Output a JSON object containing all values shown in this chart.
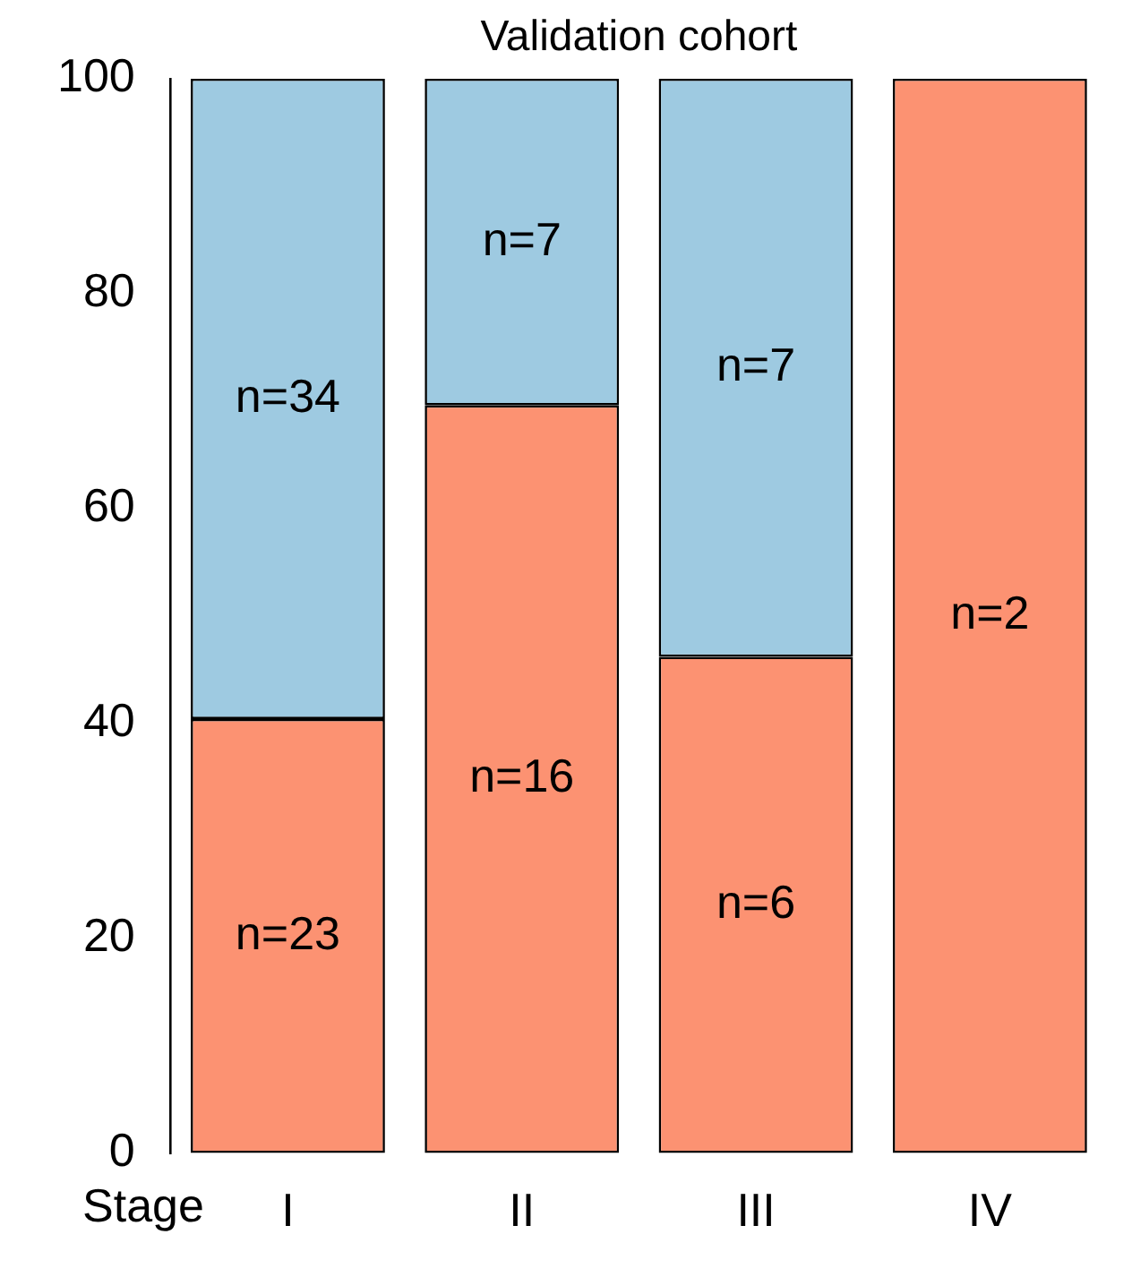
{
  "chart_data": {
    "type": "bar",
    "title": "Validation cohort",
    "xlabel": "Stage",
    "categories": [
      "I",
      "II",
      "III",
      "IV"
    ],
    "stacked": true,
    "series": [
      {
        "color": "#fc9272",
        "values": [
          40.4,
          69.6,
          46.2,
          100
        ]
      },
      {
        "color": "#9ecae1",
        "values": [
          59.6,
          30.4,
          53.8,
          0
        ]
      }
    ],
    "annotations": [
      "n=23",
      "n=16",
      "n=6",
      "n=2",
      "n=34",
      "n=7",
      "n=7"
    ],
    "ylim": [
      0,
      100
    ],
    "yticks": [
      0,
      20,
      40,
      60,
      80,
      100
    ],
    "grid": false,
    "legend": false
  }
}
